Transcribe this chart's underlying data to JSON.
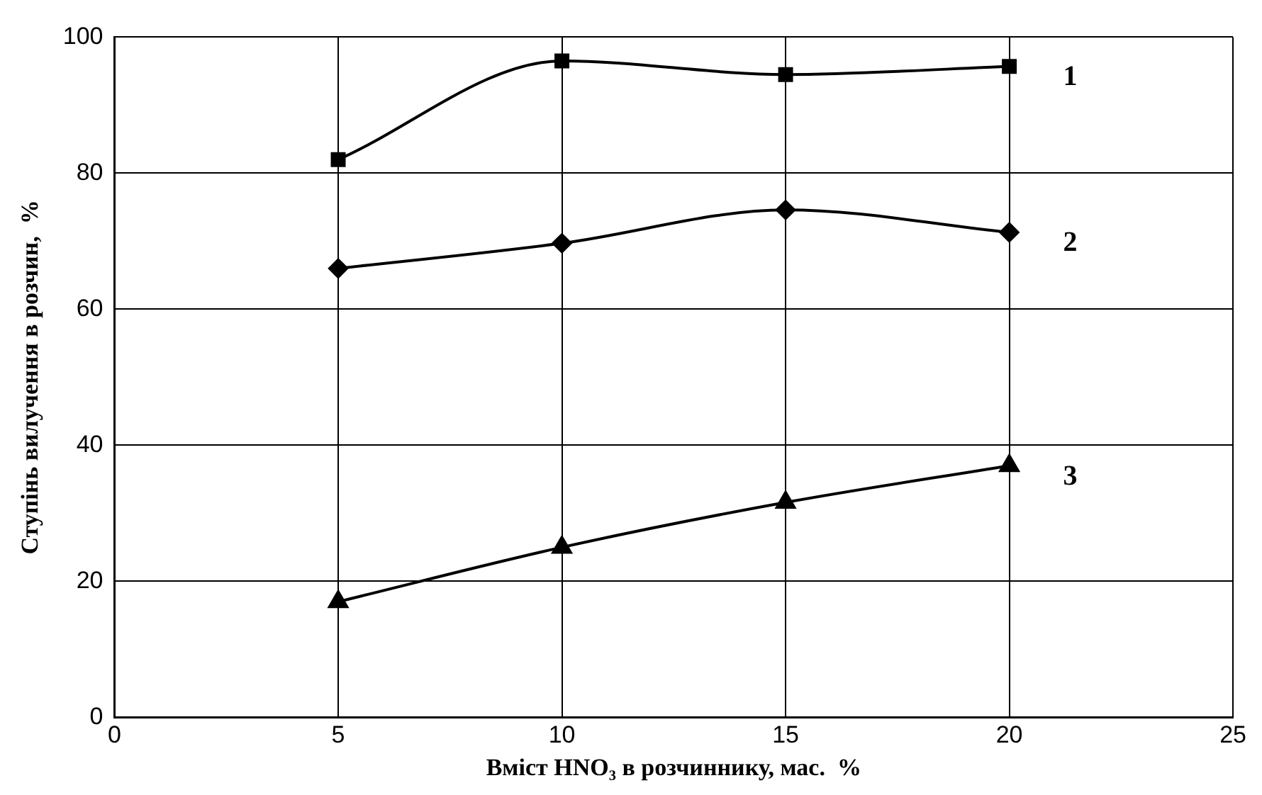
{
  "chart_data": {
    "type": "line",
    "xlabel": "Вміст HNO₃ в розчиннику, мас.  %",
    "ylabel": "Ступінь вилучення в розчин,  %",
    "x": [
      5,
      10,
      15,
      20
    ],
    "series": [
      {
        "name": "1",
        "color": "#000000",
        "marker": "square",
        "values": [
          82,
          96.5,
          94.5,
          95.7
        ]
      },
      {
        "name": "2",
        "color": "#000000",
        "marker": "diamond",
        "values": [
          66,
          69.7,
          74.6,
          71.3
        ]
      },
      {
        "name": "3",
        "color": "#000000",
        "marker": "triangle",
        "values": [
          17,
          25,
          31.6,
          37
        ]
      }
    ],
    "xlim": [
      0,
      25
    ],
    "xticks": [
      0,
      5,
      10,
      15,
      20,
      25
    ],
    "ylim": [
      0,
      100
    ],
    "yticks": [
      0,
      20,
      40,
      60,
      80,
      100
    ],
    "grid": true,
    "legend": false
  }
}
